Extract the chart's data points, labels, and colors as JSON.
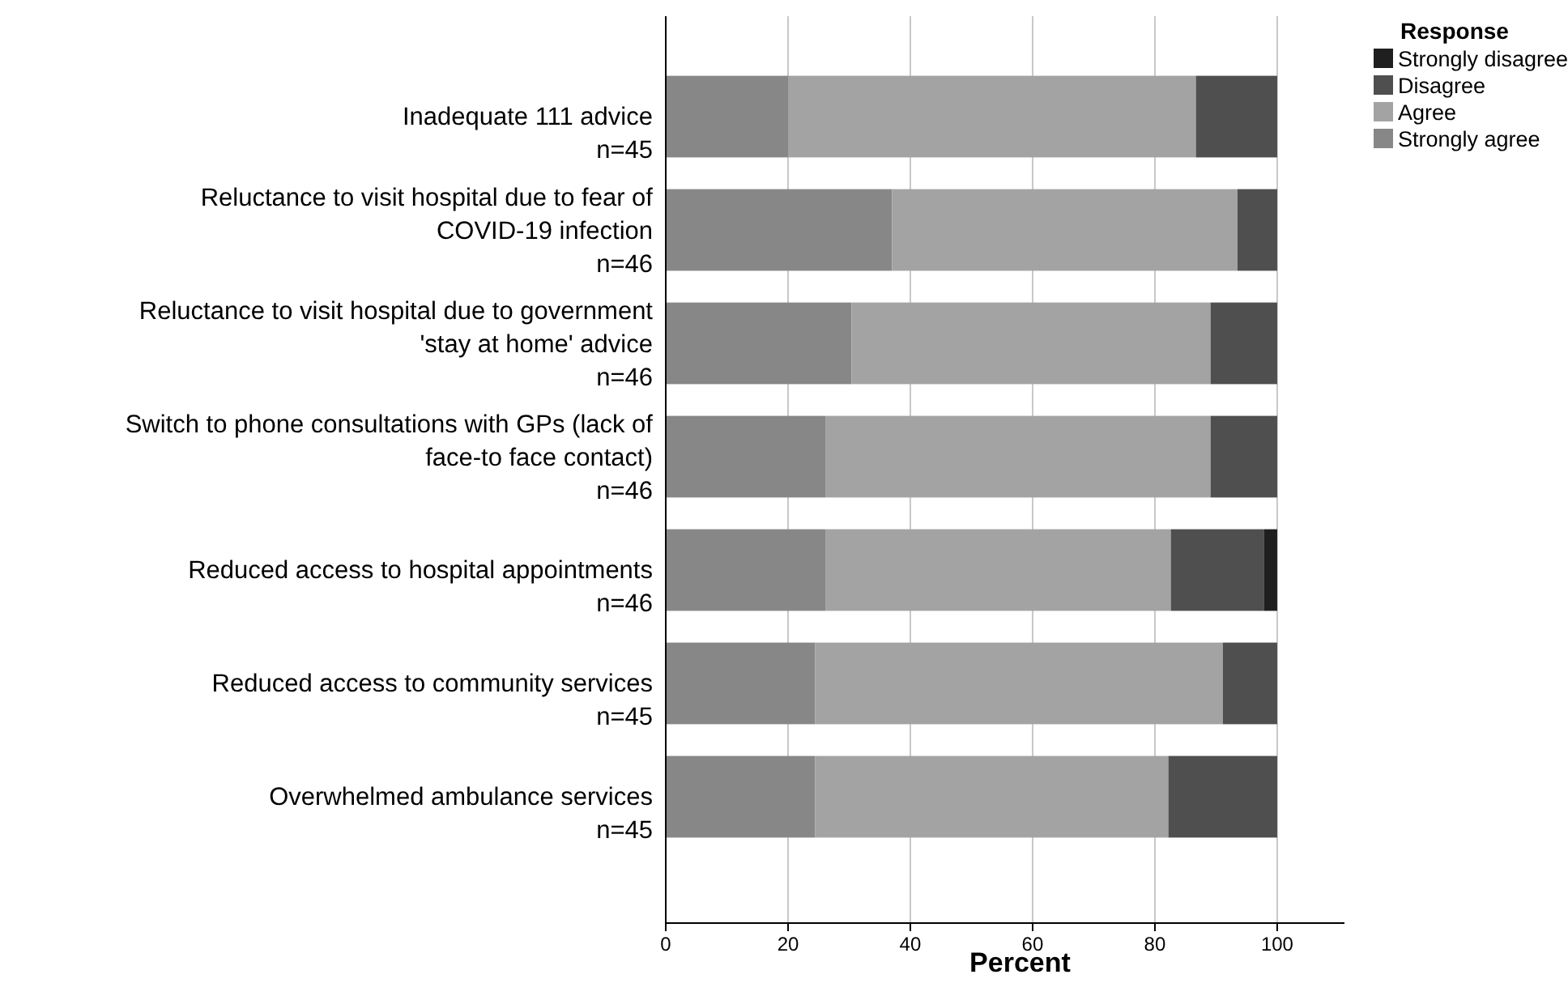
{
  "chart_data": {
    "type": "bar",
    "orientation": "horizontal",
    "stacked": true,
    "xlabel": "Percent",
    "legend_title": "Response",
    "legend": "top right",
    "grid": "x",
    "categories": [
      "Inadequate 111 advice\nn=45",
      "Reluctance to visit hospital due to fear of\nCOVID-19 infection\nn=46",
      "Reluctance to visit hospital due to government\n'stay at home' advice\nn=46",
      "Switch to phone consultations with GPs (lack of\nface-to face contact)\nn=46",
      "Reduced access to hospital appointments\nn=46",
      "Reduced access to community services\nn=45",
      "Overwhelmed ambulance services\nn=45"
    ],
    "series": [
      {
        "name": "Strongly agree",
        "color": "#878787",
        "values": [
          20.0,
          37.0,
          30.4,
          26.1,
          26.1,
          24.4,
          24.4
        ]
      },
      {
        "name": "Agree",
        "color": "#a3a3a3",
        "values": [
          66.7,
          56.5,
          58.7,
          63.0,
          56.5,
          66.7,
          57.8
        ]
      },
      {
        "name": "Disagree",
        "color": "#4f4f4f",
        "values": [
          13.3,
          6.5,
          10.9,
          10.9,
          15.2,
          8.9,
          17.8
        ]
      },
      {
        "name": "Strongly disagree",
        "color": "#1f1f1f",
        "values": [
          0,
          0,
          0,
          0,
          2.2,
          0,
          0
        ]
      }
    ],
    "xlim": [
      0,
      111
    ],
    "xticks": [
      0,
      20,
      40,
      60,
      80,
      100
    ]
  }
}
